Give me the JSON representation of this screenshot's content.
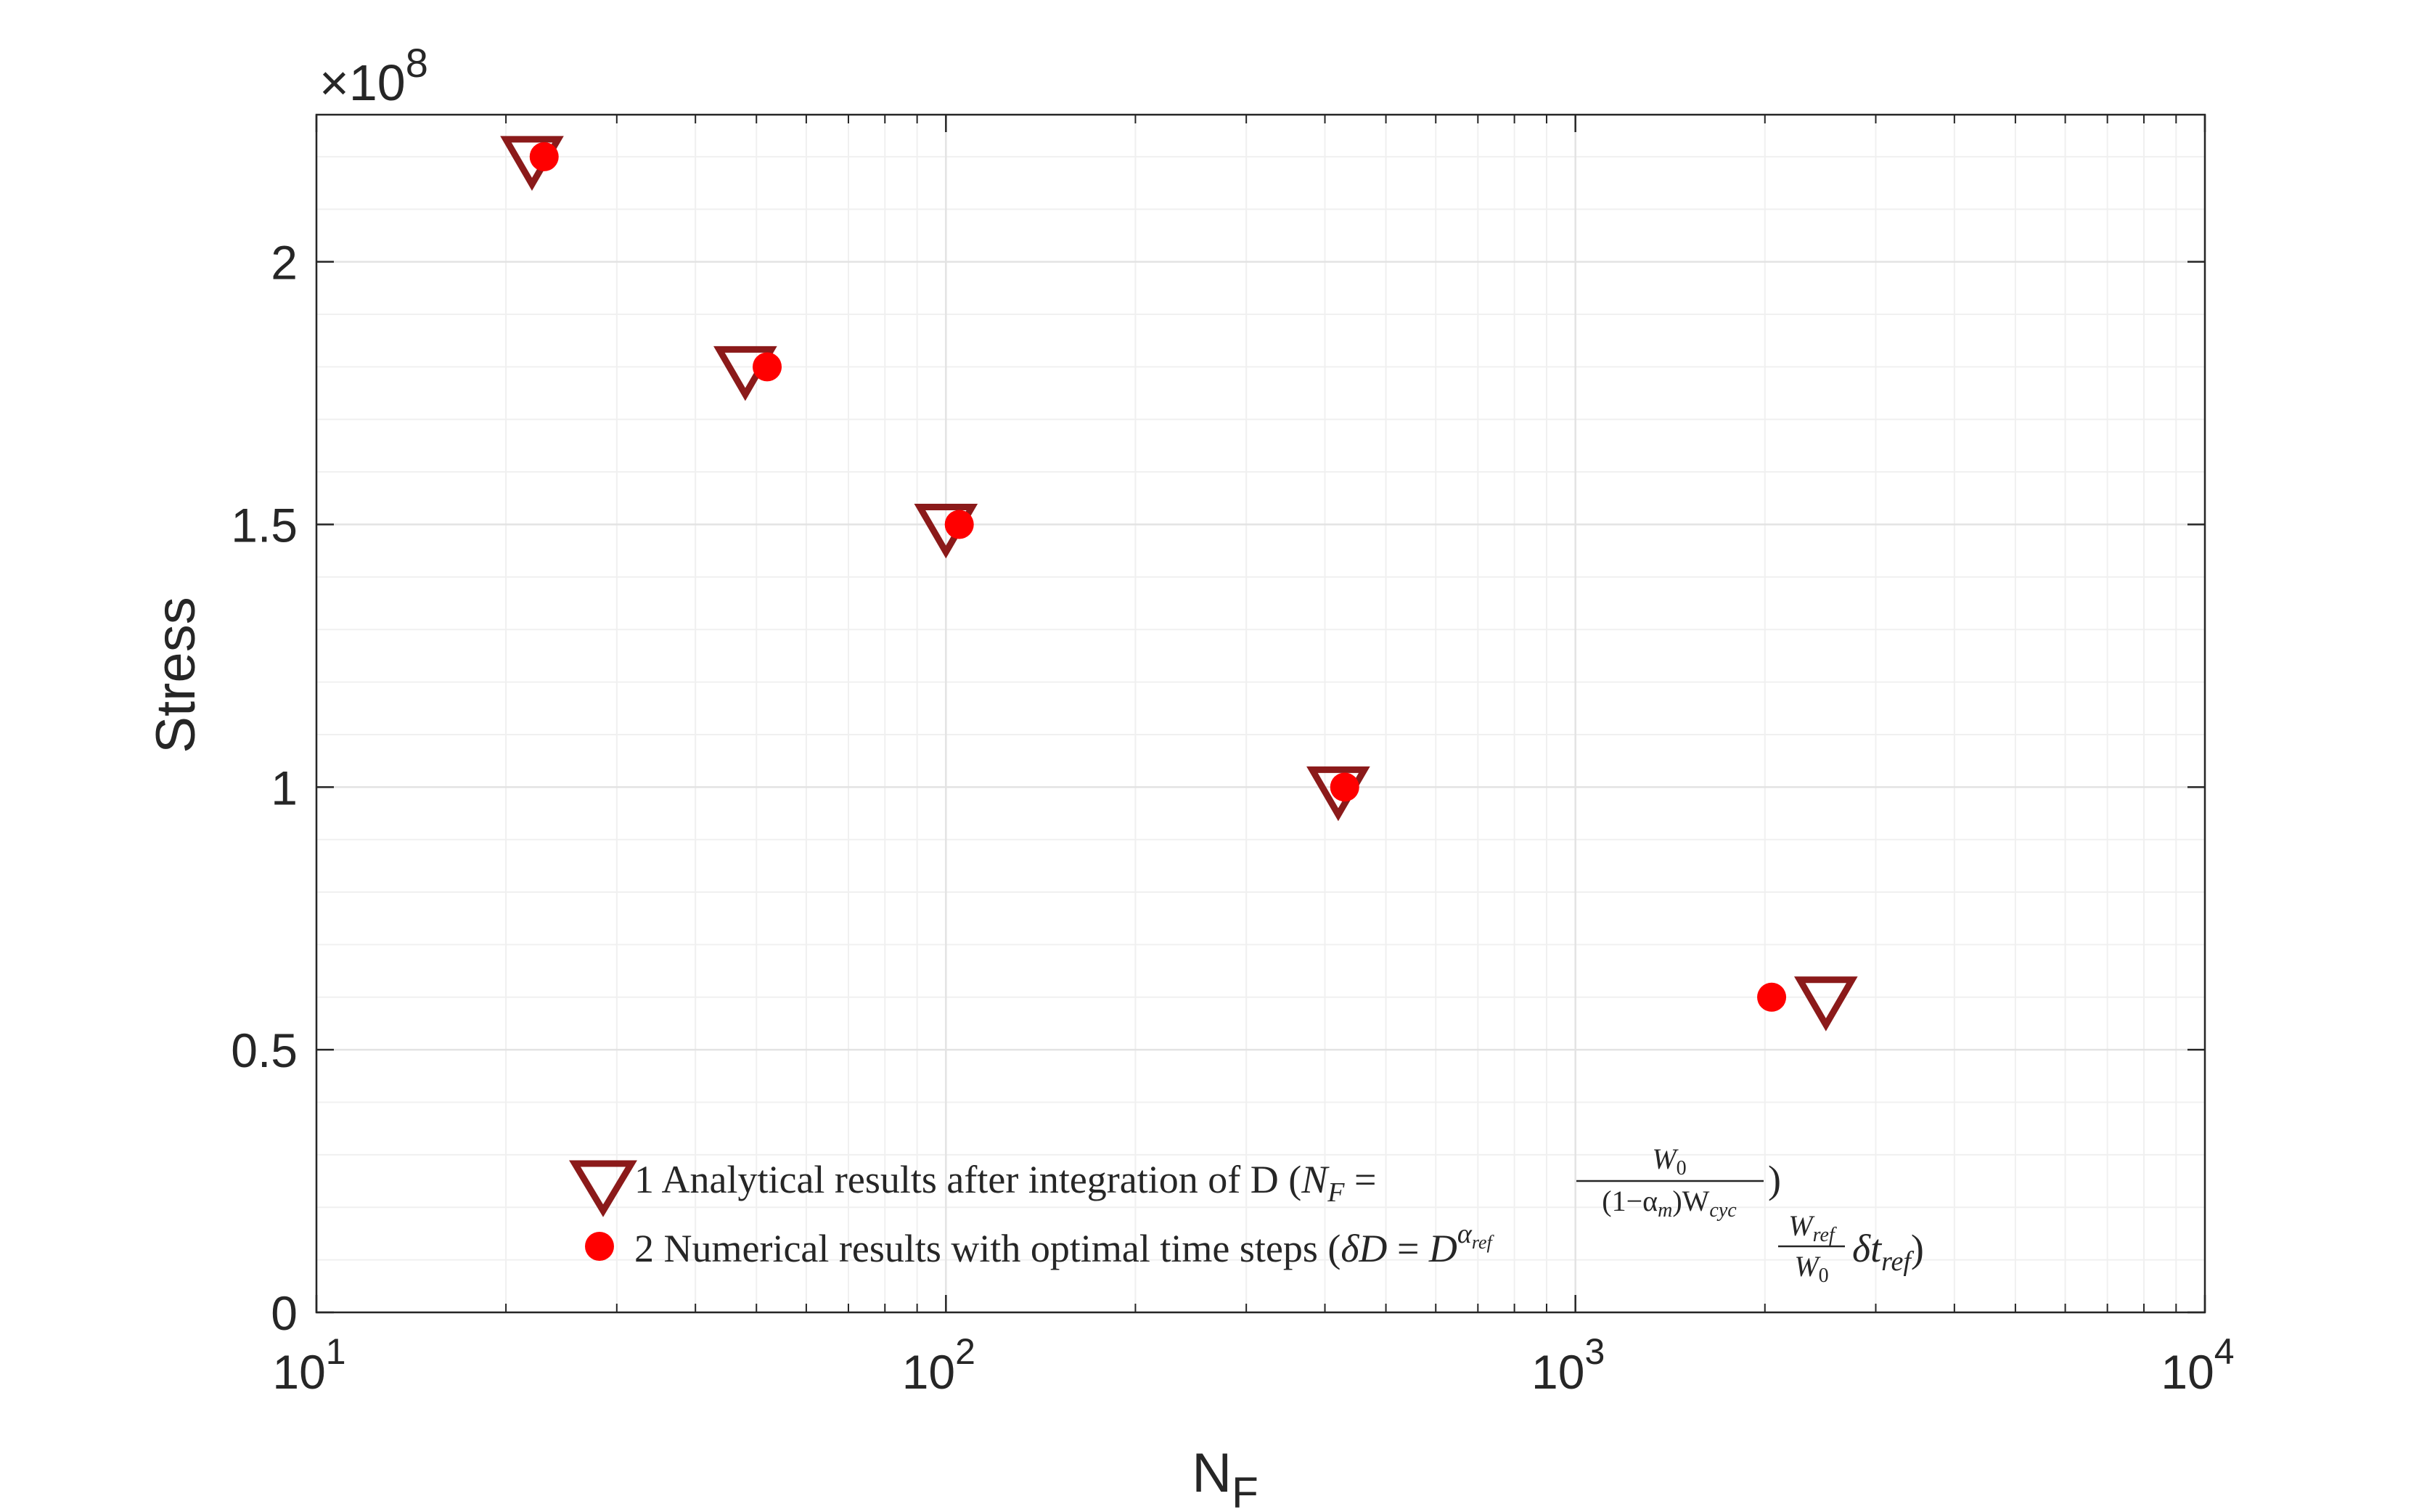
{
  "chart_data": {
    "type": "scatter",
    "xscale": "log",
    "xlim": [
      10,
      10000
    ],
    "ylim": [
      0,
      228000000
    ],
    "y_exponent": 8,
    "y_exponent_label": "×10",
    "x_ticks": [
      {
        "value": 10,
        "base": "10",
        "exp": "1"
      },
      {
        "value": 100,
        "base": "10",
        "exp": "2"
      },
      {
        "value": 1000,
        "base": "10",
        "exp": "3"
      },
      {
        "value": 10000,
        "base": "10",
        "exp": "4"
      }
    ],
    "y_ticks": [
      {
        "value": 0,
        "label": "0"
      },
      {
        "value": 50000000,
        "label": "0.5"
      },
      {
        "value": 100000000,
        "label": "1"
      },
      {
        "value": 150000000,
        "label": "1.5"
      },
      {
        "value": 200000000,
        "label": "2"
      }
    ],
    "xlabel": "N",
    "xlabel_sub": "F",
    "ylabel": "Stress",
    "grid": true,
    "minor_grid": true,
    "legend_position": "bottom-center",
    "series": [
      {
        "name": "1 Analytical results after integration of D",
        "marker": "triangle-down",
        "color": "#8b1a1a",
        "x": [
          22,
          48,
          100,
          420,
          2500
        ],
        "y": [
          220000000,
          180000000,
          150000000,
          100000000,
          60000000
        ]
      },
      {
        "name": "2 Numerical results with optimal time steps",
        "marker": "circle",
        "color": "#ff0000",
        "x": [
          23,
          52,
          105,
          430,
          2050
        ],
        "y": [
          220000000,
          180000000,
          150000000,
          100000000,
          60000000
        ]
      }
    ]
  },
  "legend": {
    "analytical_text": "1 Analytical results after integration of D (",
    "analytical_math": {
      "lhs": "N",
      "lhs_sub": "F",
      "equals": " = ",
      "numerator": "W",
      "numerator_sub": "0",
      "denominator": "(1−α",
      "denominator_m": "m",
      "denominator_rest": ")W",
      "denominator_sub": "cyc",
      "close": ")"
    },
    "numerical_text": "2 Numerical results with optimal time steps (",
    "numerical_math": {
      "delta_d": "δD",
      "equals": " = ",
      "d_base": "D",
      "d_exp": "α",
      "d_exp_sub": "ref",
      "frac_num": "W",
      "frac_num_sub": "ref",
      "frac_den": "W",
      "frac_den_sub": "0",
      "delta_t": "δt",
      "delta_t_sub": "ref",
      "close": ")"
    }
  }
}
